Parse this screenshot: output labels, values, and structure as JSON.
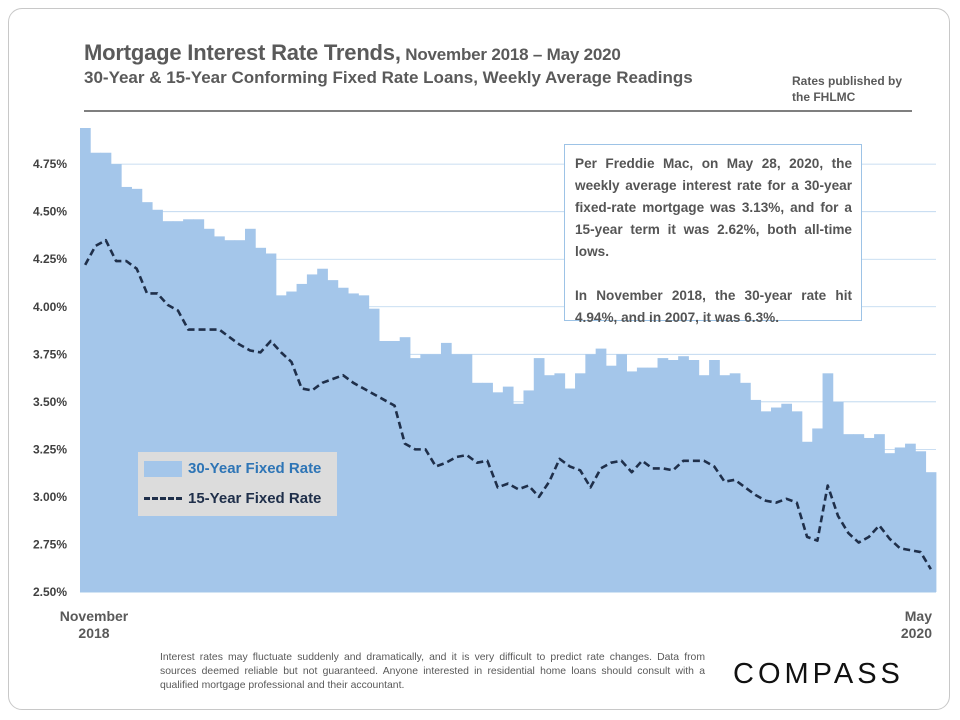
{
  "title": {
    "main": "Mortgage Interest Rate Trends,",
    "dates": " November 2018 – May 2020",
    "subtitle": "30-Year & 15-Year Conforming  Fixed Rate Loans, Weekly Average Readings",
    "source": "Rates published by the FHLMC"
  },
  "callout": {
    "para1": "Per Freddie Mac, on May 28, 2020, the weekly average interest rate for a 30-year fixed-rate mortgage was 3.13%, and for a 15-year term it was 2.62%, both all-time lows.",
    "para2": "In November 2018, the 30-year rate hit 4.94%, and in 2007, it was 6.3%."
  },
  "x_axis": {
    "start_label": "November 2018",
    "start_line1": "November",
    "start_line2": "2018",
    "end_label": "May 2020",
    "end_line1": "May",
    "end_line2": "2020"
  },
  "disclaimer": "Interest rates may fluctuate suddenly and dramatically, and it is very difficult to predict rate changes. Data from sources deemed reliable but not guaranteed. Anyone interested in residential home loans should consult with a qualified mortgage professional and their accountant.",
  "logo": "COMPASS",
  "colors": {
    "bar": "#a4c6ea",
    "line": "#1f2f4a",
    "text": "#595959",
    "grid": "#b8d3ee"
  },
  "chart_data": {
    "type": "bar",
    "title": "Mortgage Interest Rate Trends, November 2018 – May 2020",
    "subtitle": "30-Year & 15-Year Conforming Fixed Rate Loans, Weekly Average Readings",
    "ylim": [
      2.5,
      4.94
    ],
    "y_ticks": [
      2.5,
      2.75,
      3.0,
      3.25,
      3.5,
      3.75,
      4.0,
      4.25,
      4.5,
      4.75
    ],
    "y_tick_labels": [
      "2.50%",
      "2.75%",
      "3.00%",
      "3.25%",
      "3.50%",
      "3.75%",
      "4.00%",
      "4.25%",
      "4.50%",
      "4.75%"
    ],
    "legend_position": "left-middle",
    "series": [
      {
        "name": "30-Year Fixed Rate",
        "style": "bar",
        "values": [
          4.94,
          4.81,
          4.81,
          4.75,
          4.63,
          4.62,
          4.55,
          4.51,
          4.45,
          4.45,
          4.46,
          4.46,
          4.41,
          4.37,
          4.35,
          4.35,
          4.41,
          4.31,
          4.28,
          4.06,
          4.08,
          4.12,
          4.17,
          4.2,
          4.14,
          4.1,
          4.07,
          4.06,
          3.99,
          3.82,
          3.82,
          3.84,
          3.73,
          3.75,
          3.75,
          3.81,
          3.75,
          3.75,
          3.6,
          3.6,
          3.55,
          3.58,
          3.49,
          3.56,
          3.73,
          3.64,
          3.65,
          3.57,
          3.65,
          3.75,
          3.78,
          3.69,
          3.75,
          3.66,
          3.68,
          3.68,
          3.73,
          3.72,
          3.74,
          3.72,
          3.64,
          3.72,
          3.64,
          3.65,
          3.6,
          3.51,
          3.45,
          3.47,
          3.49,
          3.45,
          3.29,
          3.36,
          3.65,
          3.5,
          3.33,
          3.33,
          3.31,
          3.33,
          3.23,
          3.26,
          3.28,
          3.24,
          3.13
        ]
      },
      {
        "name": "15-Year Fixed Rate",
        "style": "dashed-line",
        "values": [
          4.22,
          4.32,
          4.35,
          4.24,
          4.24,
          4.2,
          4.07,
          4.07,
          4.01,
          3.98,
          3.88,
          3.88,
          3.88,
          3.88,
          3.84,
          3.8,
          3.77,
          3.76,
          3.82,
          3.76,
          3.71,
          3.57,
          3.56,
          3.6,
          3.62,
          3.64,
          3.6,
          3.57,
          3.54,
          3.51,
          3.48,
          3.28,
          3.25,
          3.25,
          3.16,
          3.18,
          3.21,
          3.22,
          3.18,
          3.19,
          3.05,
          3.07,
          3.04,
          3.06,
          3.0,
          3.08,
          3.2,
          3.16,
          3.14,
          3.05,
          3.15,
          3.18,
          3.19,
          3.13,
          3.19,
          3.15,
          3.15,
          3.14,
          3.19,
          3.19,
          3.19,
          3.16,
          3.08,
          3.09,
          3.05,
          3.01,
          2.98,
          2.97,
          2.99,
          2.97,
          2.79,
          2.77,
          3.06,
          2.9,
          2.81,
          2.76,
          2.79,
          2.85,
          2.78,
          2.73,
          2.72,
          2.71,
          2.62
        ]
      }
    ]
  }
}
